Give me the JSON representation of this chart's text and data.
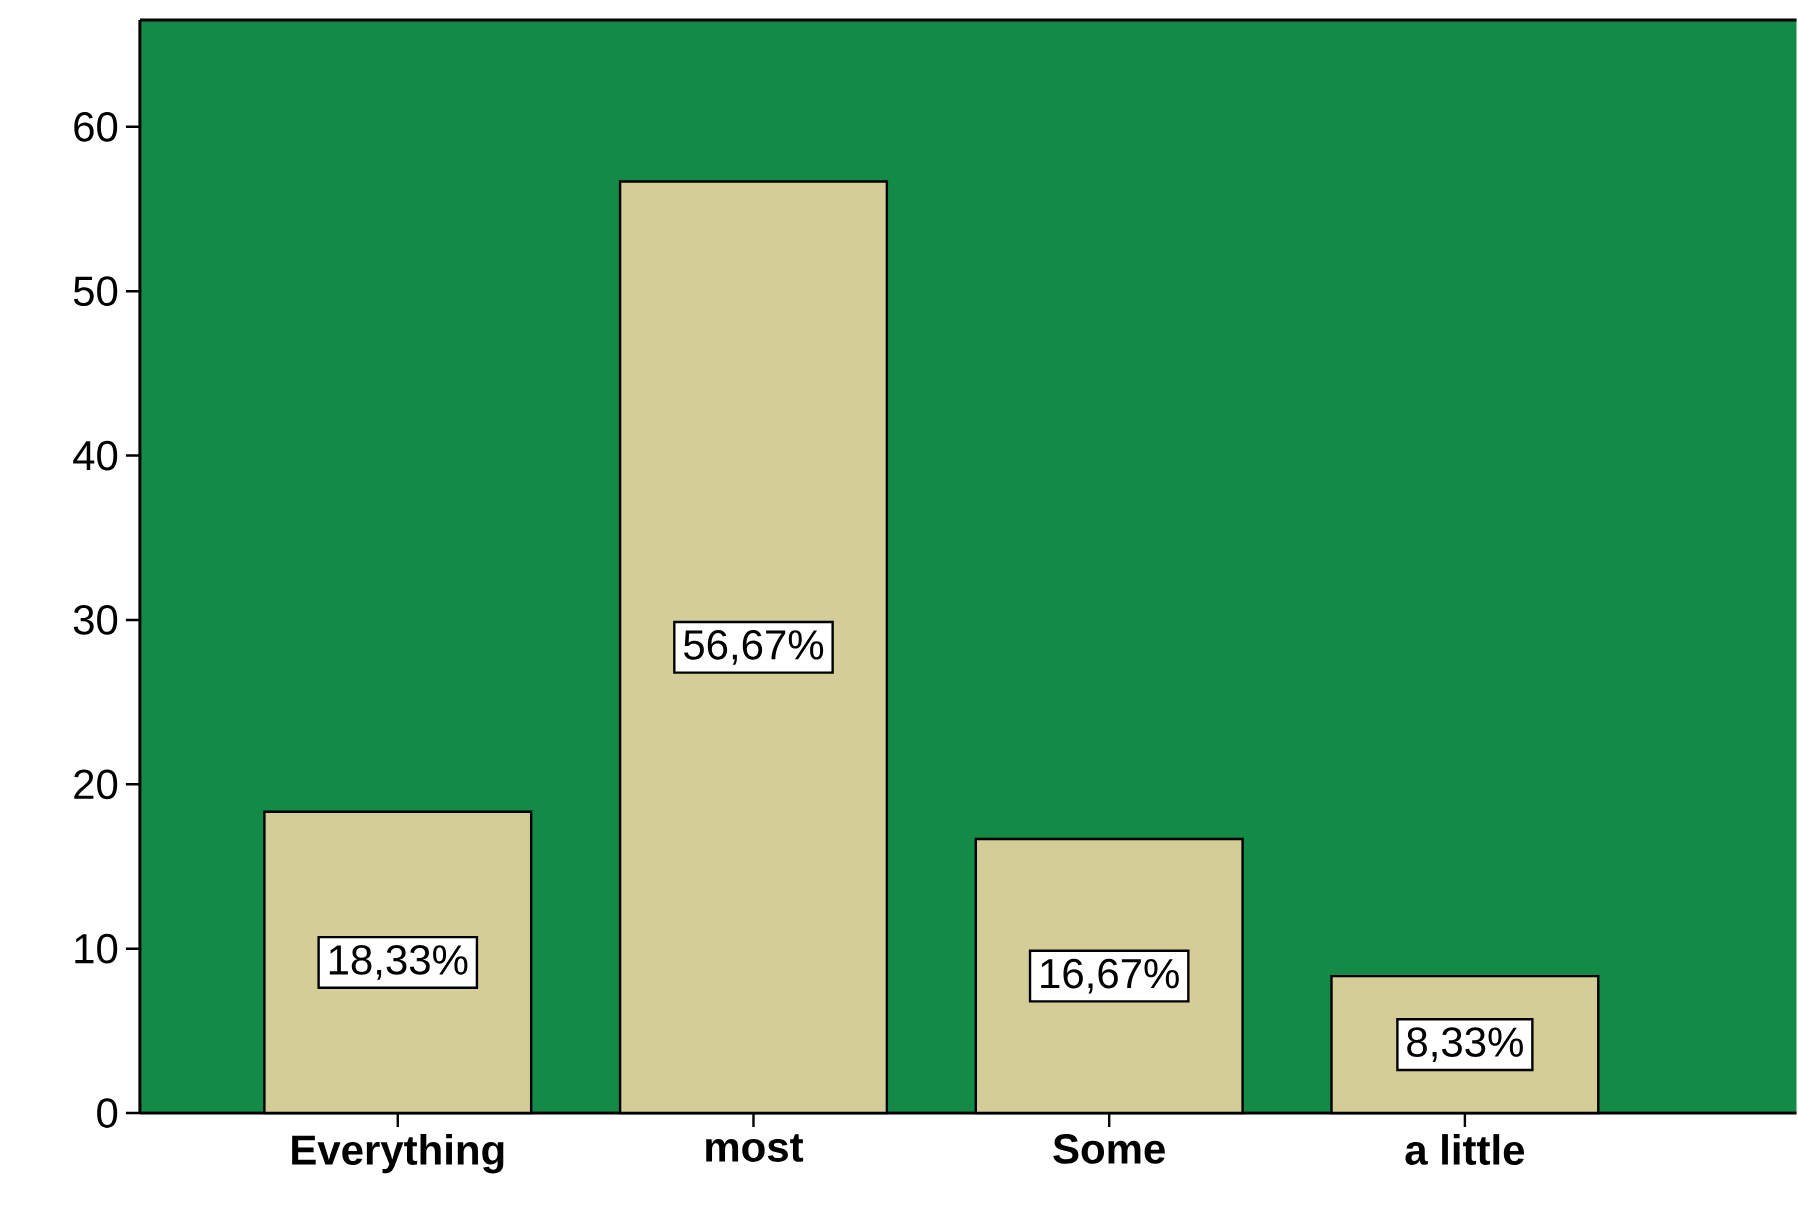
{
  "chart_data": {
    "type": "bar",
    "categories": [
      "Everything",
      "most",
      "Some",
      "a little"
    ],
    "values": [
      18.33,
      56.67,
      16.67,
      8.33
    ],
    "value_labels": [
      "18,33%",
      "56,67%",
      "16,67%",
      "8,33%"
    ],
    "color": "#d5cd98",
    "ylim": [
      0,
      66.5
    ],
    "yticks": [
      0,
      10,
      20,
      30,
      40,
      50,
      60
    ],
    "grid": false
  }
}
